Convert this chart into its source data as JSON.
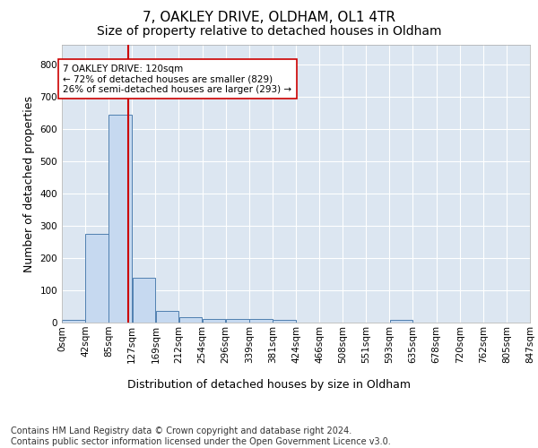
{
  "title1": "7, OAKLEY DRIVE, OLDHAM, OL1 4TR",
  "title2": "Size of property relative to detached houses in Oldham",
  "xlabel": "Distribution of detached houses by size in Oldham",
  "ylabel": "Number of detached properties",
  "footer": "Contains HM Land Registry data © Crown copyright and database right 2024.\nContains public sector information licensed under the Open Government Licence v3.0.",
  "annotation_line1": "7 OAKLEY DRIVE: 120sqm",
  "annotation_line2": "← 72% of detached houses are smaller (829)",
  "annotation_line3": "26% of semi-detached houses are larger (293) →",
  "property_size": 120,
  "bin_edges": [
    0,
    42.5,
    85,
    127.5,
    170,
    212.5,
    255,
    297.5,
    340,
    382.5,
    425,
    467.5,
    510,
    552.5,
    595,
    637.5,
    680,
    722.5,
    765,
    807.5,
    850
  ],
  "bin_labels": [
    "0sqm",
    "42sqm",
    "85sqm",
    "127sqm",
    "169sqm",
    "212sqm",
    "254sqm",
    "296sqm",
    "339sqm",
    "381sqm",
    "424sqm",
    "466sqm",
    "508sqm",
    "551sqm",
    "593sqm",
    "635sqm",
    "678sqm",
    "720sqm",
    "762sqm",
    "805sqm",
    "847sqm"
  ],
  "bar_heights": [
    8,
    275,
    645,
    138,
    35,
    18,
    12,
    10,
    10,
    8,
    0,
    0,
    0,
    0,
    8,
    0,
    0,
    0,
    0,
    0
  ],
  "bar_color": "#c6d9f0",
  "bar_edge_color": "#5080b0",
  "vline_color": "#cc0000",
  "vline_x": 120,
  "ylim_max": 860,
  "yticks": [
    0,
    100,
    200,
    300,
    400,
    500,
    600,
    700,
    800
  ],
  "background_color": "#dce6f1",
  "grid_color": "#ffffff",
  "title1_fontsize": 11,
  "title2_fontsize": 10,
  "axis_label_fontsize": 9,
  "tick_fontsize": 7.5,
  "annotation_fontsize": 7.5,
  "footer_fontsize": 7
}
